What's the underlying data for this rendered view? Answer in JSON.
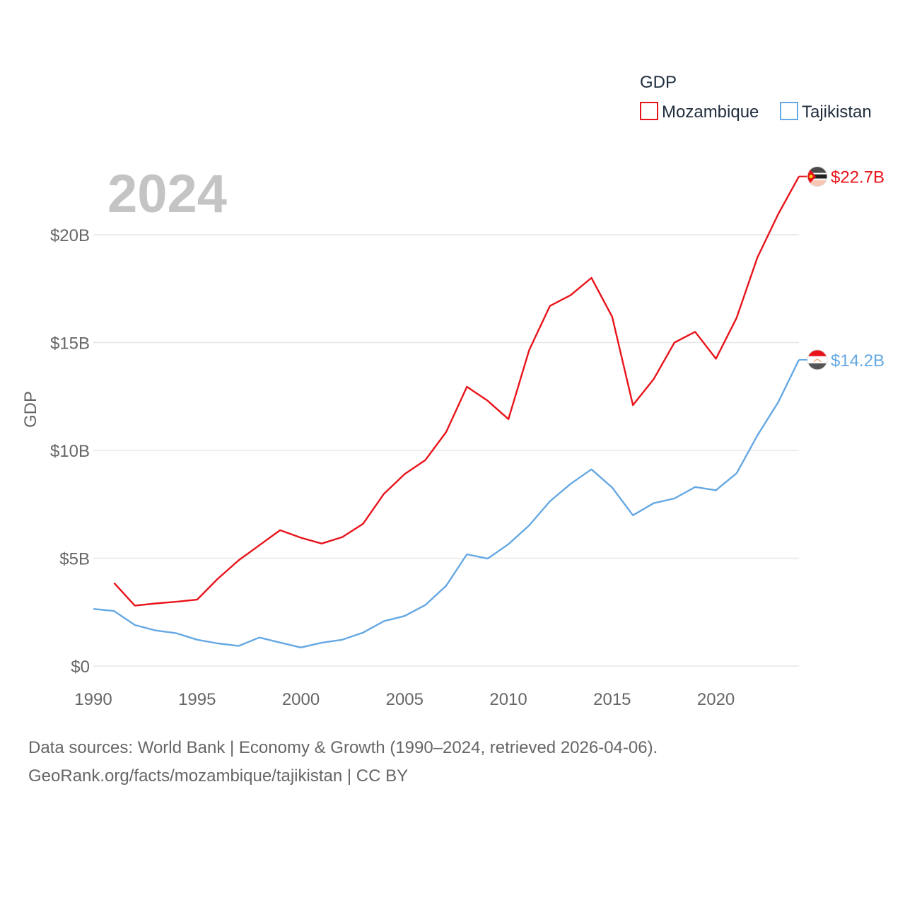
{
  "chart_data": {
    "type": "line",
    "year_label": "2024",
    "ylabel": "GDP",
    "legend": {
      "title": "GDP",
      "position": "top-right"
    },
    "x": [
      1990,
      1991,
      1992,
      1993,
      1994,
      1995,
      1996,
      1997,
      1998,
      1999,
      2000,
      2001,
      2002,
      2003,
      2004,
      2005,
      2006,
      2007,
      2008,
      2009,
      2010,
      2011,
      2012,
      2013,
      2014,
      2015,
      2016,
      2017,
      2018,
      2019,
      2020,
      2021,
      2022,
      2023,
      2024
    ],
    "xlim": [
      1990,
      2024
    ],
    "xticks": [
      1990,
      1995,
      2000,
      2005,
      2010,
      2015,
      2020
    ],
    "xtick_labels": [
      "1990",
      "1995",
      "2000",
      "2005",
      "2010",
      "2015",
      "2020"
    ],
    "ylim": [
      0,
      23
    ],
    "yticks": [
      0,
      5,
      10,
      15,
      20
    ],
    "ytick_labels": [
      "$0",
      "$5B",
      "$10B",
      "$15B",
      "$20B"
    ],
    "grid": true,
    "series": [
      {
        "name": "Mozambique",
        "color": "#e8141b",
        "end_label": "$22.7B",
        "flag_icon": "mozambique-flag-icon",
        "values": [
          null,
          3.85,
          2.8,
          2.9,
          2.98,
          3.08,
          4.05,
          4.9,
          5.6,
          6.3,
          5.95,
          5.68,
          5.98,
          6.6,
          7.98,
          8.9,
          9.55,
          10.85,
          12.95,
          12.3,
          11.45,
          14.65,
          16.7,
          17.2,
          18.0,
          16.2,
          12.1,
          13.3,
          15.0,
          15.5,
          14.25,
          16.15,
          18.95,
          20.95,
          22.7
        ]
      },
      {
        "name": "Tajikistan",
        "color": "#65a8e3",
        "end_label": "$14.2B",
        "flag_icon": "tajikistan-flag-icon",
        "values": [
          2.65,
          2.55,
          1.9,
          1.65,
          1.52,
          1.22,
          1.05,
          0.93,
          1.32,
          1.09,
          0.86,
          1.08,
          1.22,
          1.55,
          2.08,
          2.32,
          2.83,
          3.72,
          5.18,
          4.98,
          5.65,
          6.52,
          7.64,
          8.45,
          9.12,
          8.28,
          6.99,
          7.55,
          7.77,
          8.3,
          8.15,
          8.94,
          10.7,
          12.23,
          14.2
        ]
      }
    ]
  },
  "source": {
    "line1": "Data sources: World Bank | Economy & Growth (1990–2024, retrieved 2026-04-06).",
    "line2": "GeoRank.org/facts/mozambique/tajikistan | CC BY"
  }
}
